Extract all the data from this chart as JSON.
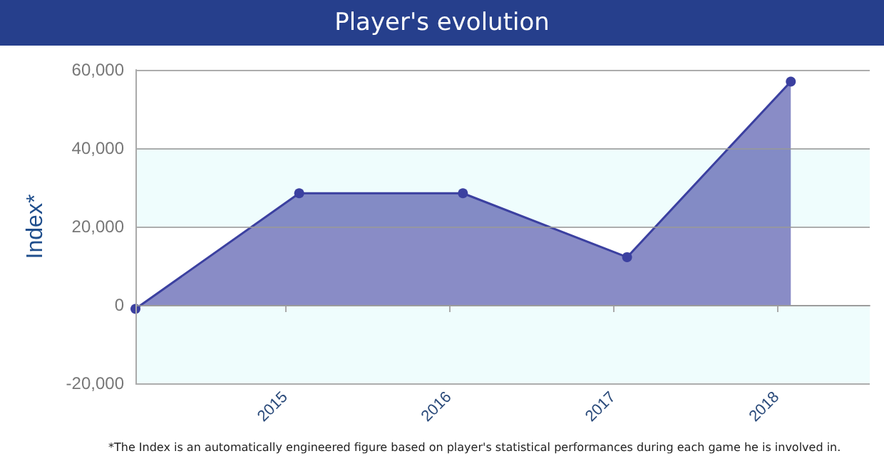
{
  "chart_data": {
    "type": "area",
    "title": "Player's evolution",
    "ylabel": "Index*",
    "annotations": [
      "*The Index is an automatically engineered figure based on player's statistical performances during each game he is involved in."
    ],
    "x": [
      "2014-02-01",
      "2015-02-01",
      "2016-02-01",
      "2017-02-01",
      "2018-02-01"
    ],
    "series": [
      {
        "color": "#3b40a0",
        "values": [
          -1000,
          28500,
          28500,
          12200,
          57000
        ]
      }
    ],
    "xlim": [
      "2014-02-01",
      "2018-07-27"
    ],
    "xticks": [
      "2015",
      "2016",
      "2017",
      "2018"
    ],
    "ylim": [
      -20000,
      60000
    ],
    "yticks": [
      {
        "value": -20000,
        "label": "-20,000"
      },
      0,
      {
        "value": 20000,
        "label": "20,000"
      },
      {
        "value": 40000,
        "label": "40,000"
      },
      {
        "value": 60000,
        "label": "60,000"
      }
    ],
    "grid": "y",
    "marker": "circle",
    "bands": [
      {
        "axis": "y",
        "from": -20000,
        "to": 0,
        "color": "#effdfd"
      },
      {
        "axis": "y",
        "from": 20000,
        "to": 40000,
        "color": "#effdfd"
      }
    ]
  }
}
